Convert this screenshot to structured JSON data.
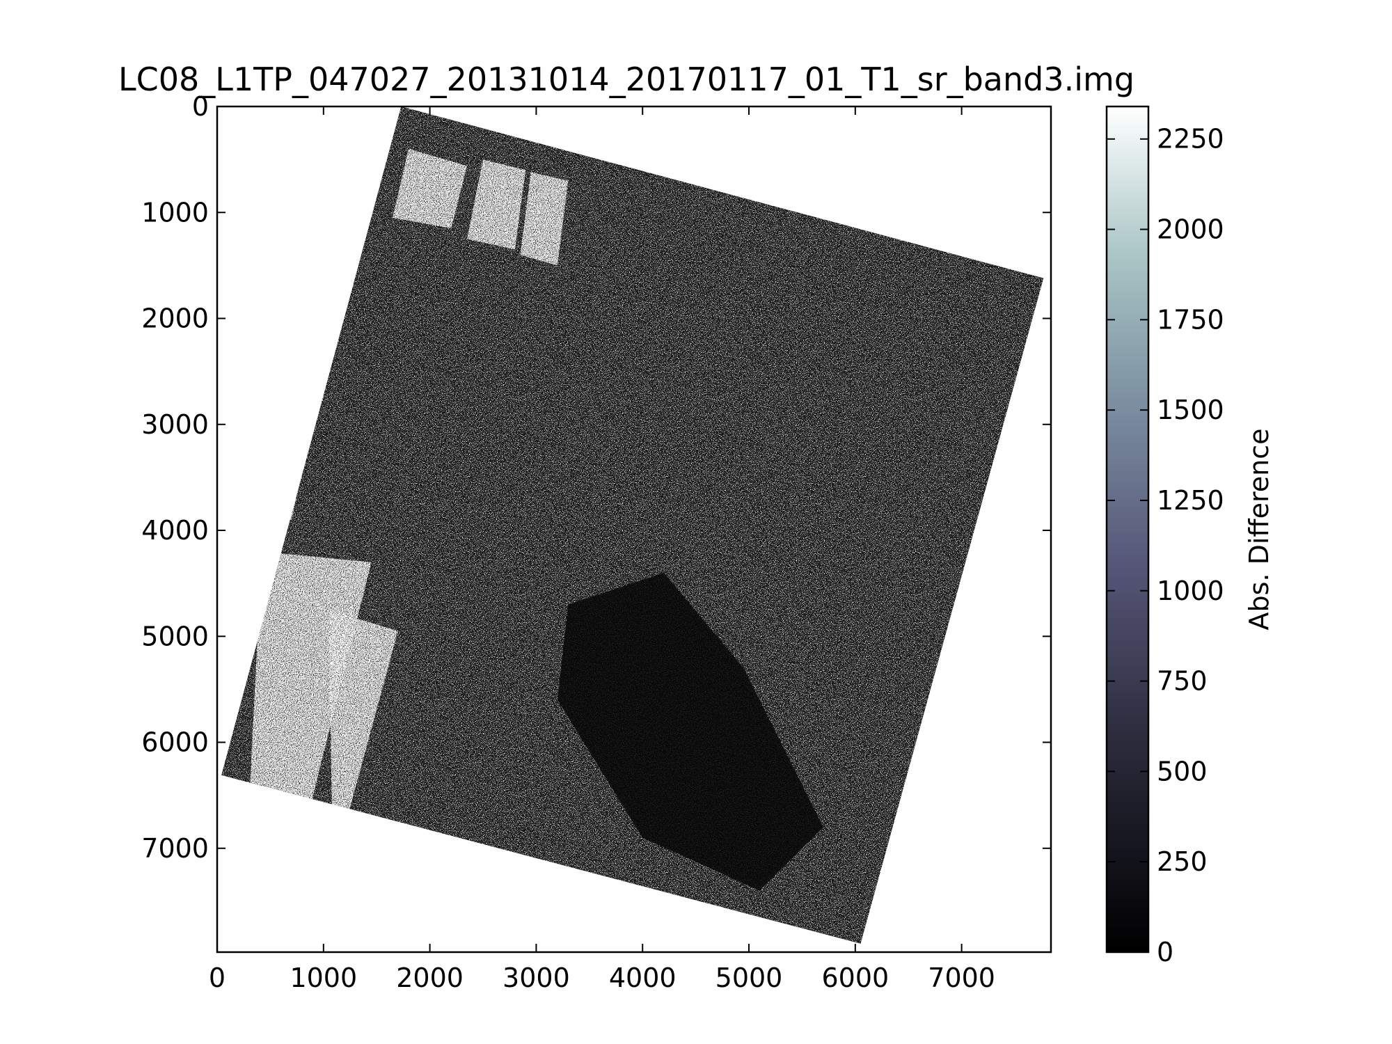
{
  "chart_data": {
    "type": "heatmap",
    "title": "LC08_L1TP_047027_20131014_20170117_01_T1_sr_band3.img",
    "xlabel": "",
    "ylabel": "",
    "x_ticks": [
      0,
      1000,
      2000,
      3000,
      4000,
      5000,
      6000,
      7000
    ],
    "y_ticks": [
      0,
      1000,
      2000,
      3000,
      4000,
      5000,
      6000,
      7000
    ],
    "xlim": [
      0,
      7840
    ],
    "ylim": [
      7980,
      0
    ],
    "y_axis_inverted": true,
    "grid": false,
    "image_footprint_corners": [
      [
        1730,
        0
      ],
      [
        7770,
        1620
      ],
      [
        6050,
        7900
      ],
      [
        40,
        6310
      ]
    ],
    "image_description": "rotated scene footprint; mostly dark noisy pixels with bright speckle, bright striped bands near left edge, dark low-difference region in center-lower area",
    "colorbar": {
      "label": "Abs. Difference",
      "ticks": [
        0,
        250,
        500,
        750,
        1000,
        1250,
        1500,
        1750,
        2000,
        2250
      ],
      "range": [
        0,
        2340
      ],
      "colormap": "bone",
      "colors": [
        "#000000",
        "#2b2b3c",
        "#545475",
        "#7c8fa1",
        "#a8c4c4",
        "#ffffff"
      ]
    }
  }
}
